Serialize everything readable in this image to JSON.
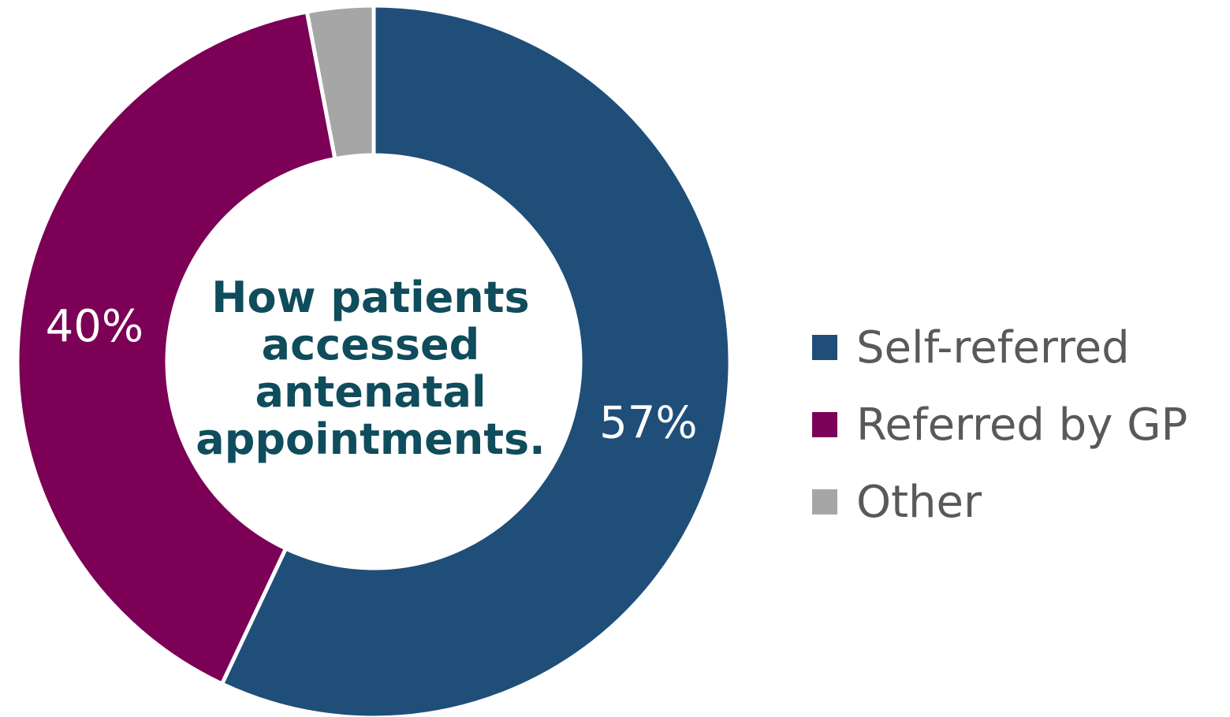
{
  "chart_data": {
    "type": "pie",
    "donut": true,
    "title_lines": [
      "How patients",
      "accessed",
      "antenatal",
      "appointments."
    ],
    "categories": [
      "Self-referred",
      "Referred by GP",
      "Other"
    ],
    "values": [
      57,
      40,
      3
    ],
    "data_labels": [
      "57%",
      "40%",
      ""
    ],
    "colors": [
      "#1f4e79",
      "#7b0056",
      "#a6a6a6"
    ],
    "legend": "right"
  }
}
